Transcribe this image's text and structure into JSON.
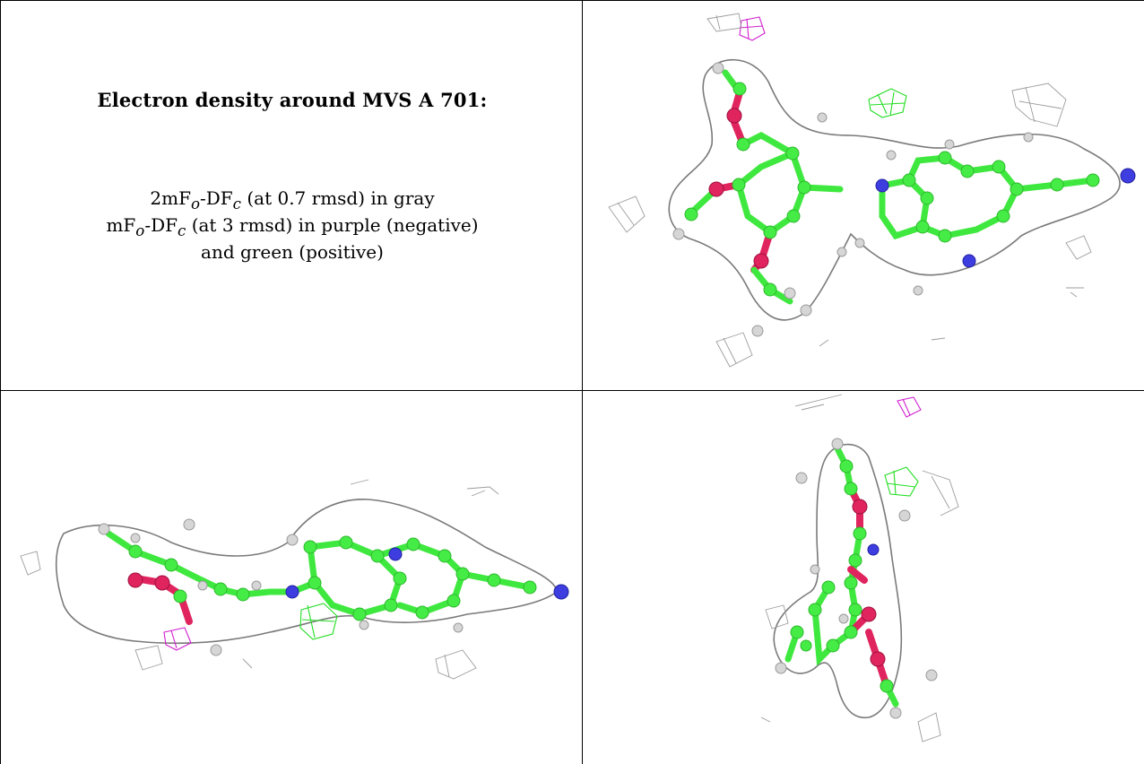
{
  "legend": {
    "title": "Electron density around MVS A 701:",
    "line1_prefix": "2mF",
    "line1_sub1": "o",
    "line1_mid": "-DF",
    "line1_sub2": "c",
    "line1_suffix": " (at 0.7 rmsd) in gray",
    "line2_prefix": "mF",
    "line2_sub1": "o",
    "line2_mid": "-DF",
    "line2_sub2": "c",
    "line2_suffix": " (at 3 rmsd) in purple (negative)",
    "line3": "and green (positive)"
  },
  "colors": {
    "map_2fofc": "#8a8a8a",
    "map_fofc_negative": "#d020d0",
    "map_fofc_positive": "#22dd22",
    "carbon": "#46ec46",
    "oxygen": "#e0245e",
    "nitrogen": "#3e3ee0",
    "hydrogen": "#d6d6d6"
  }
}
